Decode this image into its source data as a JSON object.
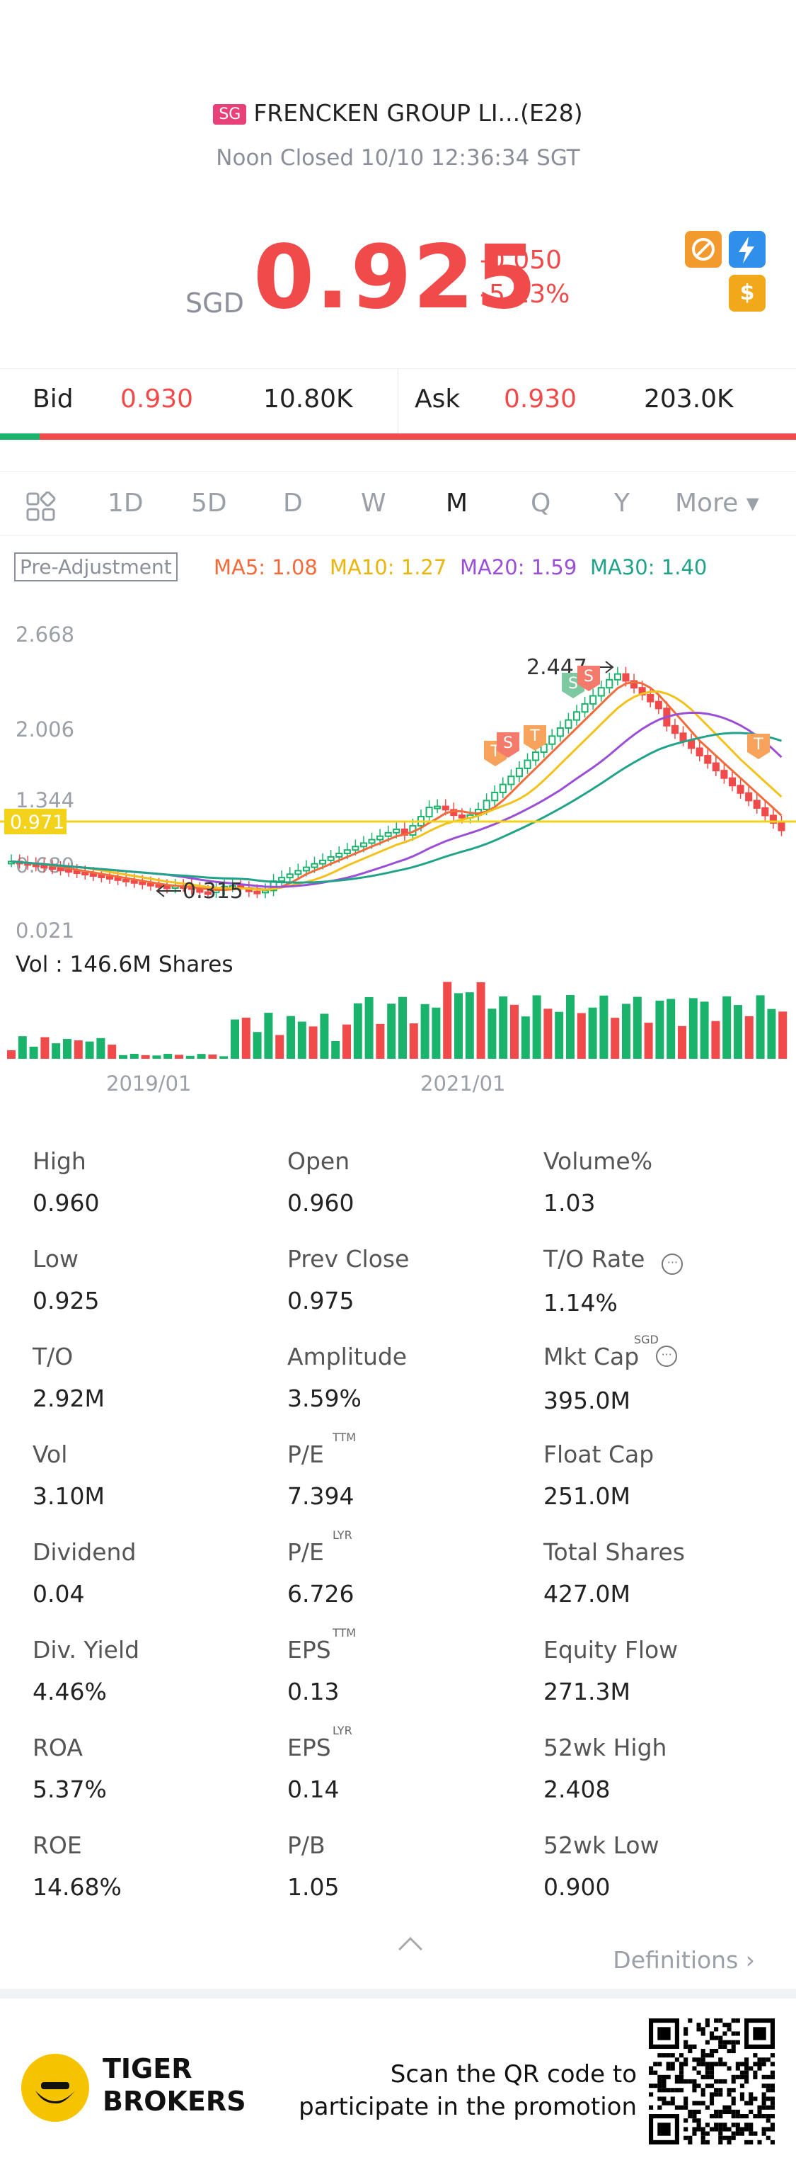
{
  "header": {
    "market_badge": "SG",
    "title": "FRENCKEN GROUP LI...(E28)",
    "status": "Noon Closed 10/10 12:36:34 SGT",
    "currency": "SGD",
    "price": "0.925",
    "change": "-0.050",
    "change_pct": "-5.13%",
    "up_color": "#19b36b",
    "down_color": "#f04a4a"
  },
  "bid_ask": {
    "bid_label": "Bid",
    "bid_price": "0.930",
    "bid_size": "10.80K",
    "ask_label": "Ask",
    "ask_price": "0.930",
    "ask_size": "203.0K",
    "bid_share": 0.05
  },
  "tabs": [
    "1D",
    "5D",
    "D",
    "W",
    "M",
    "Q",
    "Y",
    "More ▾"
  ],
  "active_tab": "M",
  "ma": {
    "preadj": "Pre-Adjustment",
    "ma5": "MA5: 1.08",
    "ma10": "MA10: 1.27",
    "ma20": "MA20: 1.59",
    "ma30": "MA30: 1.40",
    "ma5_color": "#f26b3a",
    "ma10_color": "#f2c21b",
    "ma20_color": "#9b4ed6",
    "ma30_color": "#21a38a"
  },
  "chart": {
    "y_ticks": [
      "2.668",
      "2.006",
      "1.344",
      "0.680",
      "0.021"
    ],
    "current_price_tag": "0.971",
    "high_marker": "2.447",
    "low_marker": "0.315",
    "volume_label": "Vol  : 146.6M Shares",
    "x_labels": [
      "2019/01",
      "2021/01"
    ],
    "trade_markers": [
      "T",
      "S",
      "T",
      "S",
      "S",
      "T"
    ]
  },
  "stats": [
    {
      "label": "High",
      "value": "0.960"
    },
    {
      "label": "Open",
      "value": "0.960"
    },
    {
      "label": "Volume%",
      "value": "1.03"
    },
    {
      "label": "Low",
      "value": "0.925"
    },
    {
      "label": "Prev Close",
      "value": "0.975"
    },
    {
      "label": "T/O Rate",
      "value": "1.14%"
    },
    {
      "label": "T/O",
      "value": "2.92M"
    },
    {
      "label": "Amplitude",
      "value": "3.59%"
    },
    {
      "label": "Mkt Cap",
      "value": "395.0M",
      "sup": "SGD"
    },
    {
      "label": "Vol",
      "value": "3.10M"
    },
    {
      "label": "P/E",
      "value": "7.394",
      "sup": "TTM"
    },
    {
      "label": "Float Cap",
      "value": "251.0M"
    },
    {
      "label": "Dividend",
      "value": "0.04"
    },
    {
      "label": "P/E",
      "value": "6.726",
      "sup": "LYR"
    },
    {
      "label": "Total Shares",
      "value": "427.0M"
    },
    {
      "label": "Div. Yield",
      "value": "4.46%"
    },
    {
      "label": "EPS",
      "value": "0.13",
      "sup": "TTM"
    },
    {
      "label": "Equity Flow",
      "value": "271.3M"
    },
    {
      "label": "ROA",
      "value": "5.37%"
    },
    {
      "label": "EPS",
      "value": "0.14",
      "sup": "LYR"
    },
    {
      "label": "52wk High",
      "value": "2.408"
    },
    {
      "label": "ROE",
      "value": "14.68%"
    },
    {
      "label": "P/B",
      "value": "1.05"
    },
    {
      "label": "52wk Low",
      "value": "0.900"
    }
  ],
  "definitions_link": "Definitions",
  "footer": {
    "brand_line1": "TIGER",
    "brand_line2": "BROKERS",
    "promo_line1": "Scan the QR code to",
    "promo_line2": "participate in the promotion"
  }
}
